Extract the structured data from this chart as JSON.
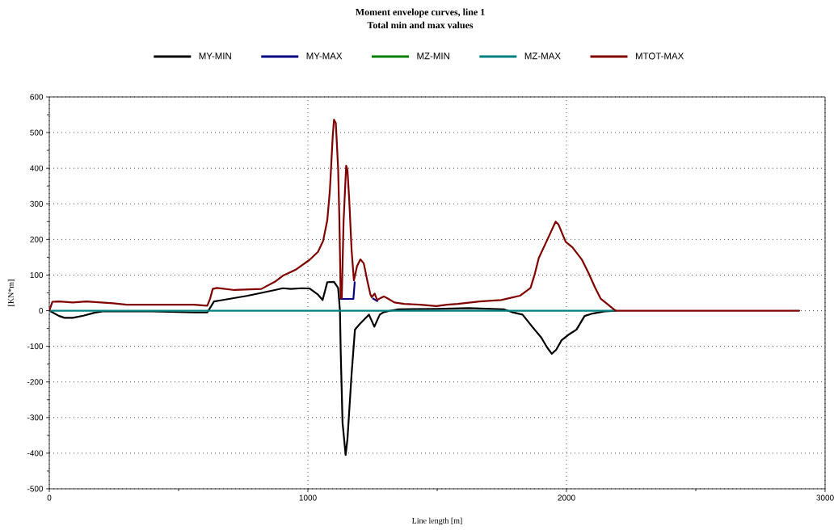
{
  "chart_data": {
    "type": "line",
    "title": "Moment envelope curves, line 1",
    "subtitle": "Total min and max values",
    "xlabel": "Line length [m]",
    "ylabel": "[KN*m]",
    "xlim": [
      0,
      3000
    ],
    "ylim": [
      -500,
      600
    ],
    "xticks": [
      0,
      {
        "value": 500,
        "label": null
      },
      1000,
      {
        "value": 1500,
        "label": null
      },
      2000,
      {
        "value": 2500,
        "label": null
      },
      3000
    ],
    "yticks": [
      -500,
      {
        "value": -450,
        "label": null
      },
      -400,
      {
        "value": -350,
        "label": null
      },
      -300,
      {
        "value": -250,
        "label": null
      },
      -200,
      {
        "value": -150,
        "label": null
      },
      -100,
      {
        "value": -50,
        "label": null
      },
      0,
      {
        "value": 50,
        "label": null
      },
      100,
      {
        "value": 150,
        "label": null
      },
      200,
      {
        "value": 250,
        "label": null
      },
      300,
      {
        "value": 350,
        "label": null
      },
      400,
      {
        "value": 450,
        "label": null
      },
      500,
      {
        "value": 550,
        "label": null
      },
      600
    ],
    "grid": true,
    "legend": "top",
    "series": [
      {
        "name": "MY-MIN",
        "color": "#000000",
        "x": [
          0,
          38,
          59,
          91,
          132,
          174,
          205,
          400,
          559,
          611,
          622,
          637,
          663,
          768,
          872,
          903,
          934,
          976,
          1007,
          1039,
          1057,
          1075,
          1101,
          1117,
          1124,
          1127,
          1134,
          1146,
          1153,
          1169,
          1182,
          1200,
          1236,
          1257,
          1278,
          1294,
          1320,
          1350,
          1500,
          1622,
          1757,
          1789,
          1830,
          1872,
          1903,
          1924,
          1943,
          1960,
          1981,
          2007,
          2039,
          2070,
          2101,
          2148,
          2190
        ],
        "values": [
          0,
          -15,
          -20,
          -20,
          -14,
          -6,
          -2,
          -2,
          -5,
          -5,
          8,
          26,
          29,
          42,
          58,
          63,
          61,
          63,
          62,
          45,
          30,
          80,
          81,
          64,
          0,
          -117,
          -314,
          -405,
          -360,
          -178,
          -53,
          -38,
          -11,
          -45,
          -11,
          -4,
          0,
          4,
          5,
          7,
          4,
          -4,
          -11,
          -49,
          -76,
          -102,
          -121,
          -110,
          -83,
          -68,
          -53,
          -15,
          -8,
          -2,
          0
        ]
      },
      {
        "name": "MY-MAX",
        "color": "#000080",
        "x": [
          1124,
          1176,
          1181,
          1215,
          1252,
          1268
        ],
        "values": [
          33,
          33,
          80,
          null,
          34,
          27
        ]
      },
      {
        "name": "MZ-MIN",
        "color": "#008000"
      },
      {
        "name": "MZ-MAX",
        "color": "#008080",
        "x": [
          0,
          2190
        ],
        "values": [
          0,
          0
        ]
      },
      {
        "name": "MTOT-MAX",
        "color": "#800000",
        "x": [
          0,
          12,
          38,
          91,
          143,
          247,
          299,
          559,
          611,
          622,
          632,
          648,
          716,
          820,
          872,
          903,
          955,
          1007,
          1039,
          1059,
          1075,
          1085,
          1096,
          1101,
          1108,
          1117,
          1122,
          1127,
          1131,
          1138,
          1148,
          1153,
          1160,
          1169,
          1178,
          1190,
          1203,
          1216,
          1231,
          1242,
          1247,
          1258,
          1268,
          1280,
          1294,
          1309,
          1335,
          1372,
          1434,
          1497,
          1538,
          1580,
          1664,
          1747,
          1820,
          1861,
          1877,
          1893,
          1929,
          1958,
          1969,
          1997,
          2023,
          2059,
          2085,
          2111,
          2132,
          2164,
          2190,
          2900
        ],
        "values": [
          0,
          25,
          26,
          23,
          26,
          21,
          17,
          17,
          14,
          34,
          61,
          64,
          58,
          61,
          81,
          98,
          116,
          143,
          165,
          196,
          254,
          337,
          489,
          536,
          527,
          398,
          250,
          35,
          35,
          250,
          407,
          395,
          310,
          170,
          85,
          125,
          144,
          133,
          80,
          45,
          38,
          48,
          30,
          35,
          40,
          34,
          23,
          19,
          17,
          13,
          17,
          19,
          26,
          30,
          42,
          64,
          102,
          148,
          204,
          250,
          242,
          193,
          178,
          144,
          106,
          64,
          34,
          15,
          0,
          0
        ]
      }
    ]
  }
}
